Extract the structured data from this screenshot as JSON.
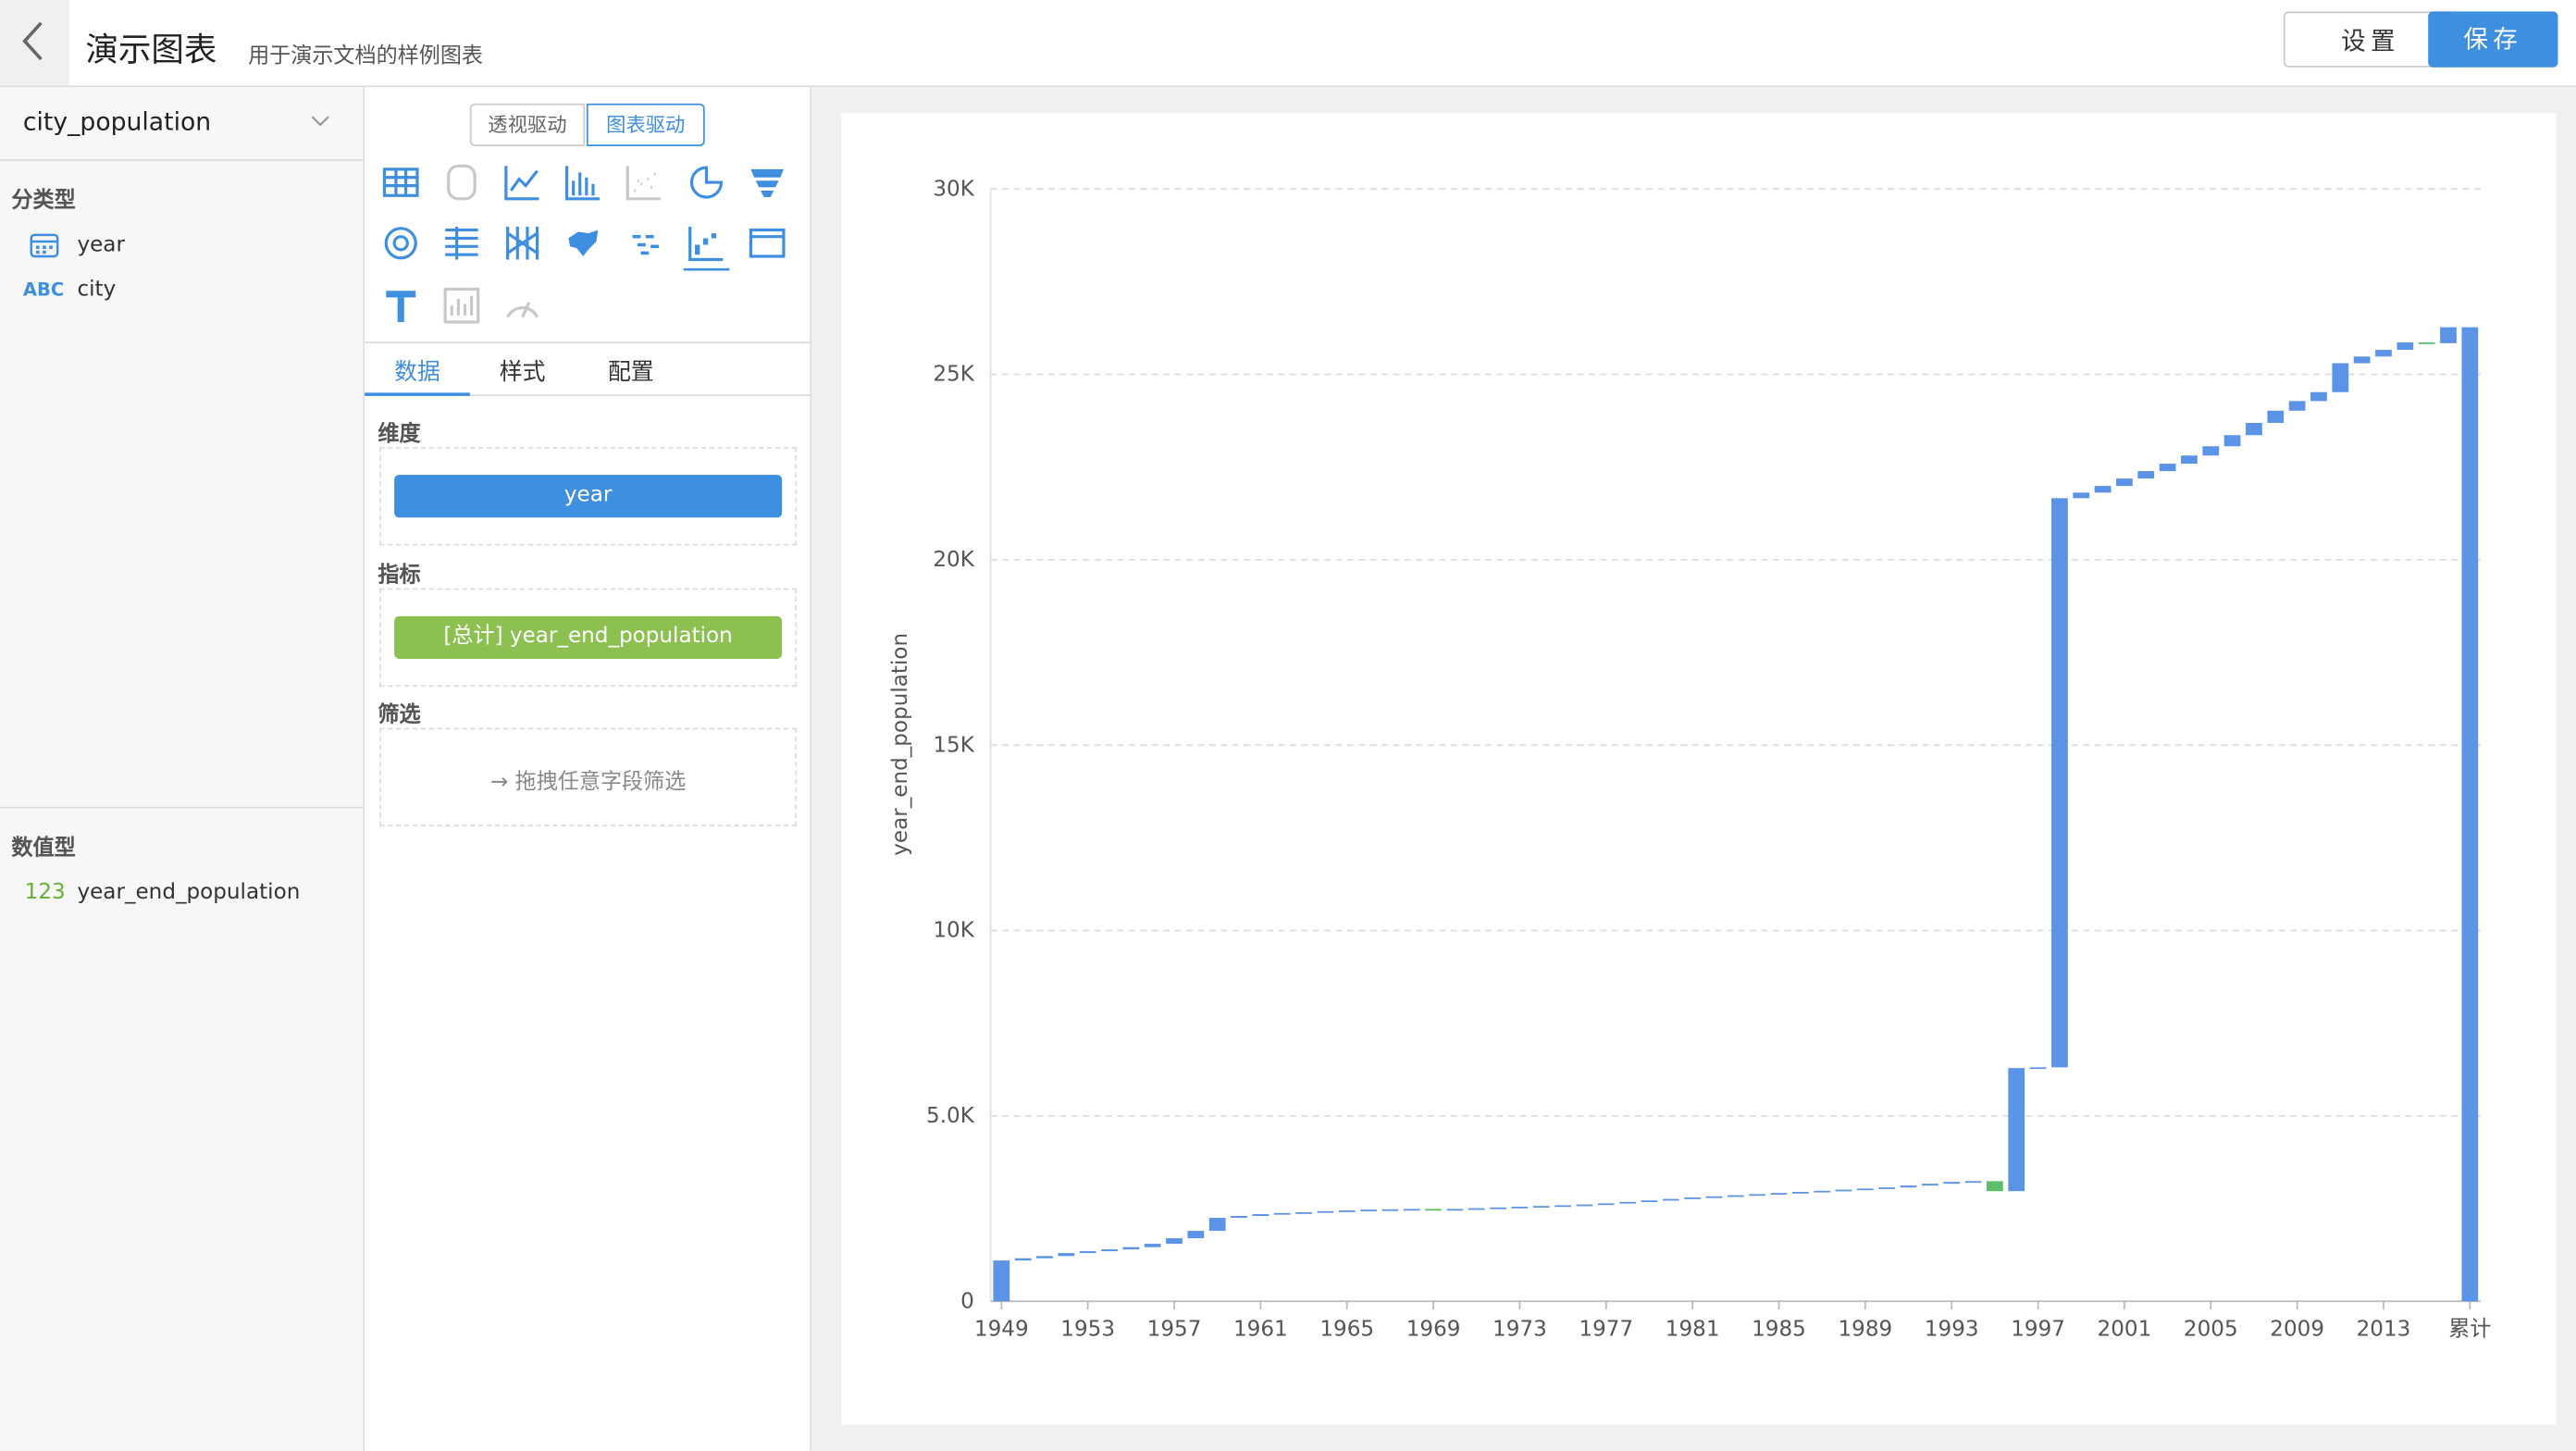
{
  "header": {
    "title": "演示图表",
    "subtitle": "用于演示文档的样例图表",
    "buttons": [
      "设置",
      "保存"
    ]
  },
  "sidebar": {
    "dataset": "city_population",
    "category_group": "分类型",
    "category_fields": [
      {
        "icon": "",
        "name": "year"
      },
      {
        "icon": "ABC",
        "name": "city"
      }
    ],
    "numeric_group": "数值型",
    "numeric_fields": [
      {
        "icon": "123",
        "name": "year_end_population"
      }
    ]
  },
  "panel": {
    "modes": [
      "透视驱动",
      "图表驱动"
    ],
    "tabs": [
      "数据",
      "样式",
      "配置"
    ],
    "dimension_label": "维度",
    "dimension": "year",
    "metric_label": "指标",
    "metric": "[总计] year_end_population",
    "filter_label": "筛选",
    "filter_hint": "拖拽任意字段筛选"
  },
  "chart_data": {
    "type": "waterfall",
    "y_label": "year_end_population",
    "categories": [
      "1949",
      null,
      null,
      null,
      "1953",
      null,
      null,
      null,
      "1957",
      null,
      null,
      null,
      "1961",
      null,
      null,
      null,
      "1965",
      null,
      null,
      null,
      "1969",
      null,
      null,
      null,
      "1973",
      null,
      null,
      null,
      "1977",
      null,
      null,
      null,
      "1981",
      null,
      null,
      null,
      "1985",
      null,
      null,
      null,
      "1989",
      null,
      null,
      null,
      "1993",
      null,
      null,
      null,
      "1997",
      null,
      null,
      null,
      "2001",
      null,
      null,
      null,
      "2005",
      null,
      null,
      null,
      "2009",
      null,
      null,
      null,
      "2013",
      null,
      null,
      null,
      "累计"
    ],
    "values": [
      1100,
      60,
      60,
      80,
      50,
      50,
      60,
      90,
      150,
      200,
      350,
      50,
      50,
      30,
      20,
      30,
      20,
      20,
      10,
      10,
      -10,
      10,
      20,
      20,
      20,
      20,
      20,
      20,
      30,
      40,
      40,
      40,
      40,
      30,
      30,
      30,
      30,
      30,
      30,
      30,
      30,
      30,
      50,
      50,
      50,
      20,
      -270,
      3320,
      20,
      15350,
      150,
      180,
      200,
      200,
      200,
      220,
      250,
      300,
      330,
      330,
      260,
      240,
      780,
      180,
      180,
      200,
      -20,
      430,
      26270
    ],
    "color": "#5b93e6",
    "decrease_color": "#5bbf6a",
    "ylim": [
      0,
      30000
    ],
    "yticks": [
      0,
      {
        "value": 5000,
        "label": "5.0K"
      },
      {
        "value": 10000,
        "label": "10K"
      },
      {
        "value": 15000,
        "label": "15K"
      },
      {
        "value": 20000,
        "label": "20K"
      },
      {
        "value": 25000,
        "label": "25K"
      },
      {
        "value": 30000,
        "label": "30K"
      }
    ],
    "grid": true
  }
}
